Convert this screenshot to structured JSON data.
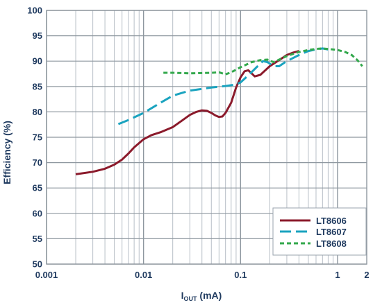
{
  "chart_data": {
    "type": "line",
    "xscale": "log",
    "xlabel_main": "I",
    "xlabel_sub": "OUT",
    "xlabel_unit": " (mA)",
    "ylabel": "Efficiency (%)",
    "xlim": [
      0.001,
      2
    ],
    "ylim": [
      50,
      100
    ],
    "grid": true,
    "legend_position": "bottom-right",
    "x_ticks": [
      {
        "value": 0.001,
        "label": "0.001"
      },
      {
        "value": 0.01,
        "label": "0.01"
      },
      {
        "value": 0.1,
        "label": "0.1"
      },
      {
        "value": 1,
        "label": "1"
      },
      {
        "value": 2,
        "label": "2"
      }
    ],
    "y_ticks": [
      50,
      55,
      60,
      65,
      70,
      75,
      80,
      85,
      90,
      95,
      100
    ],
    "series": [
      {
        "name": "LT8606",
        "color": "#8b1a2b",
        "dash": "solid",
        "points": [
          [
            0.002,
            67.7
          ],
          [
            0.003,
            68.2
          ],
          [
            0.004,
            68.8
          ],
          [
            0.005,
            69.6
          ],
          [
            0.006,
            70.6
          ],
          [
            0.007,
            71.8
          ],
          [
            0.008,
            73.0
          ],
          [
            0.01,
            74.6
          ],
          [
            0.012,
            75.4
          ],
          [
            0.015,
            76.0
          ],
          [
            0.02,
            77.0
          ],
          [
            0.025,
            78.3
          ],
          [
            0.03,
            79.4
          ],
          [
            0.035,
            80.0
          ],
          [
            0.04,
            80.3
          ],
          [
            0.045,
            80.2
          ],
          [
            0.05,
            79.8
          ],
          [
            0.055,
            79.3
          ],
          [
            0.06,
            79.0
          ],
          [
            0.065,
            79.1
          ],
          [
            0.07,
            79.8
          ],
          [
            0.08,
            81.8
          ],
          [
            0.09,
            84.8
          ],
          [
            0.1,
            86.8
          ],
          [
            0.11,
            88.0
          ],
          [
            0.12,
            88.2
          ],
          [
            0.13,
            87.6
          ],
          [
            0.14,
            87.0
          ],
          [
            0.16,
            87.3
          ],
          [
            0.18,
            88.2
          ],
          [
            0.2,
            89.0
          ],
          [
            0.25,
            90.2
          ],
          [
            0.3,
            91.2
          ],
          [
            0.35,
            91.7
          ],
          [
            0.4,
            92.0
          ]
        ]
      },
      {
        "name": "LT8607",
        "color": "#1aa3bf",
        "dash": "long-dash",
        "points": [
          [
            0.0055,
            77.6
          ],
          [
            0.007,
            78.4
          ],
          [
            0.01,
            79.8
          ],
          [
            0.015,
            81.8
          ],
          [
            0.02,
            83.2
          ],
          [
            0.03,
            84.2
          ],
          [
            0.05,
            84.8
          ],
          [
            0.07,
            85.1
          ],
          [
            0.09,
            85.4
          ],
          [
            0.1,
            85.8
          ],
          [
            0.12,
            87.2
          ],
          [
            0.15,
            89.0
          ],
          [
            0.17,
            90.0
          ],
          [
            0.19,
            89.8
          ],
          [
            0.22,
            89.0
          ],
          [
            0.25,
            89.0
          ],
          [
            0.3,
            90.0
          ],
          [
            0.4,
            91.2
          ],
          [
            0.5,
            92.0
          ],
          [
            0.6,
            92.3
          ],
          [
            0.7,
            92.5
          ],
          [
            0.8,
            92.3
          ]
        ]
      },
      {
        "name": "LT8608",
        "color": "#33a84c",
        "dash": "short-dash",
        "points": [
          [
            0.016,
            87.7
          ],
          [
            0.02,
            87.7
          ],
          [
            0.03,
            87.6
          ],
          [
            0.05,
            87.7
          ],
          [
            0.06,
            87.8
          ],
          [
            0.07,
            87.4
          ],
          [
            0.08,
            87.8
          ],
          [
            0.1,
            88.8
          ],
          [
            0.13,
            89.8
          ],
          [
            0.16,
            90.2
          ],
          [
            0.19,
            90.3
          ],
          [
            0.22,
            89.8
          ],
          [
            0.25,
            90.3
          ],
          [
            0.3,
            91.0
          ],
          [
            0.4,
            91.8
          ],
          [
            0.5,
            92.2
          ],
          [
            0.6,
            92.4
          ],
          [
            0.7,
            92.5
          ],
          [
            0.8,
            92.4
          ],
          [
            1.0,
            92.2
          ],
          [
            1.2,
            91.8
          ],
          [
            1.4,
            91.2
          ],
          [
            1.6,
            90.2
          ],
          [
            1.8,
            89.0
          ]
        ]
      }
    ]
  }
}
